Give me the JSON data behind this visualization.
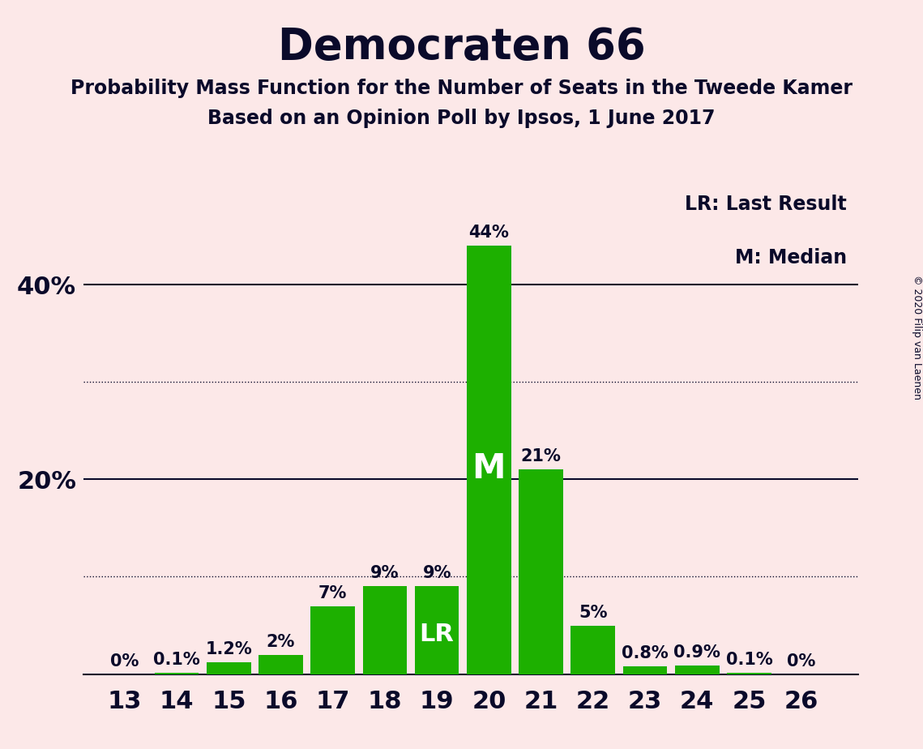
{
  "title": "Democraten 66",
  "subtitle1": "Probability Mass Function for the Number of Seats in the Tweede Kamer",
  "subtitle2": "Based on an Opinion Poll by Ipsos, 1 June 2017",
  "copyright": "© 2020 Filip van Laenen",
  "seats": [
    13,
    14,
    15,
    16,
    17,
    18,
    19,
    20,
    21,
    22,
    23,
    24,
    25,
    26
  ],
  "probabilities": [
    0.0,
    0.1,
    1.2,
    2.0,
    7.0,
    9.0,
    9.0,
    44.0,
    21.0,
    5.0,
    0.8,
    0.9,
    0.1,
    0.0
  ],
  "bar_color": "#1db000",
  "background_color": "#fce8e8",
  "text_color": "#0a0a2a",
  "ylim": [
    0,
    50
  ],
  "solid_gridlines": [
    20,
    40
  ],
  "dotted_gridlines": [
    10,
    30
  ],
  "median_seat": 20,
  "lr_seat": 19,
  "legend_text1": "LR: Last Result",
  "legend_text2": "M: Median",
  "title_fontsize": 38,
  "subtitle_fontsize": 17,
  "axis_tick_fontsize": 22,
  "bar_label_fontsize": 15,
  "legend_fontsize": 17,
  "M_fontsize": 30,
  "LR_fontsize": 22,
  "copyright_fontsize": 9,
  "xlim_left": 12.2,
  "xlim_right": 27.1,
  "bar_width": 0.85
}
